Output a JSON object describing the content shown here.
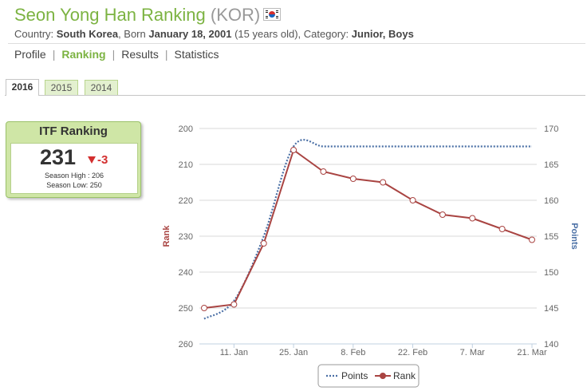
{
  "header": {
    "name": "Seon Yong Han Ranking",
    "country_code": "(KOR)",
    "flag_icon": "south-korea-flag-icon",
    "country_label": "Country:",
    "country": "South Korea",
    "born_label": ", Born",
    "born": "January 18, 2001",
    "age": "(15 years old), Category:",
    "category": "Junior, Boys"
  },
  "nav": {
    "items": [
      {
        "label": "Profile"
      },
      {
        "label": "Ranking"
      },
      {
        "label": "Results"
      },
      {
        "label": "Statistics"
      }
    ],
    "active": "Ranking",
    "separator": "|"
  },
  "year_tabs": {
    "items": [
      {
        "label": "2016"
      },
      {
        "label": "2015"
      },
      {
        "label": "2014"
      }
    ],
    "active": "2016"
  },
  "itf_card": {
    "title": "ITF Ranking",
    "rank": "231",
    "change": "-3",
    "season_high": "Season High : 206",
    "season_low": "Season Low: 250"
  },
  "chart_data": {
    "type": "line",
    "x": [
      "2016-01-04",
      "2016-01-11",
      "2016-01-18",
      "2016-01-25",
      "2016-02-01",
      "2016-02-08",
      "2016-02-15",
      "2016-02-22",
      "2016-02-29",
      "2016-03-07",
      "2016-03-14",
      "2016-03-21"
    ],
    "x_tick_labels": [
      "11. Jan",
      "25. Jan",
      "8. Feb",
      "22. Feb",
      "7. Mar",
      "21. Mar"
    ],
    "ylabel_left": "Rank",
    "ylabel_right": "Points",
    "ylim_left": [
      260,
      200
    ],
    "ylim_right": [
      140,
      170
    ],
    "y_ticks_left": [
      200,
      210,
      220,
      230,
      240,
      250,
      260
    ],
    "y_ticks_right": [
      170,
      165,
      160,
      155,
      150,
      145,
      140
    ],
    "grid": true,
    "series": [
      {
        "name": "Rank",
        "axis": "left",
        "color": "#a94442",
        "style": "solid-markers",
        "values": [
          250,
          249,
          232,
          206,
          212,
          214,
          215,
          220,
          224,
          225,
          228,
          231
        ]
      },
      {
        "name": "Points",
        "axis": "right",
        "color": "#4a6fa5",
        "style": "dotted",
        "values": [
          143.5,
          146,
          155,
          167.5,
          167.5,
          167.5,
          167.5,
          167.5,
          167.5,
          167.5,
          167.5,
          167.5
        ]
      }
    ],
    "legend": {
      "placement": "bottom-center",
      "items": [
        "Points",
        "Rank"
      ]
    }
  }
}
